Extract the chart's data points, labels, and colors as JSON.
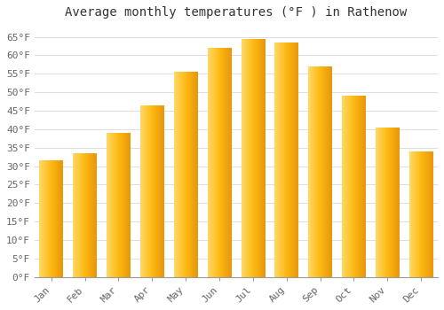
{
  "title": "Average monthly temperatures (°F ) in Rathenow",
  "months": [
    "Jan",
    "Feb",
    "Mar",
    "Apr",
    "May",
    "Jun",
    "Jul",
    "Aug",
    "Sep",
    "Oct",
    "Nov",
    "Dec"
  ],
  "values": [
    31.5,
    33.5,
    39.0,
    46.5,
    55.5,
    62.0,
    64.5,
    63.5,
    57.0,
    49.0,
    40.5,
    34.0
  ],
  "bar_color_main": "#FDB913",
  "bar_color_light": "#FFD966",
  "bar_color_dark": "#E8960A",
  "background_color": "#FFFFFF",
  "plot_bg_color": "#FFFFFF",
  "grid_color": "#DDDDDD",
  "ylim": [
    0,
    68
  ],
  "yticks": [
    0,
    5,
    10,
    15,
    20,
    25,
    30,
    35,
    40,
    45,
    50,
    55,
    60,
    65
  ],
  "title_fontsize": 10,
  "tick_fontsize": 8,
  "font_family": "monospace"
}
